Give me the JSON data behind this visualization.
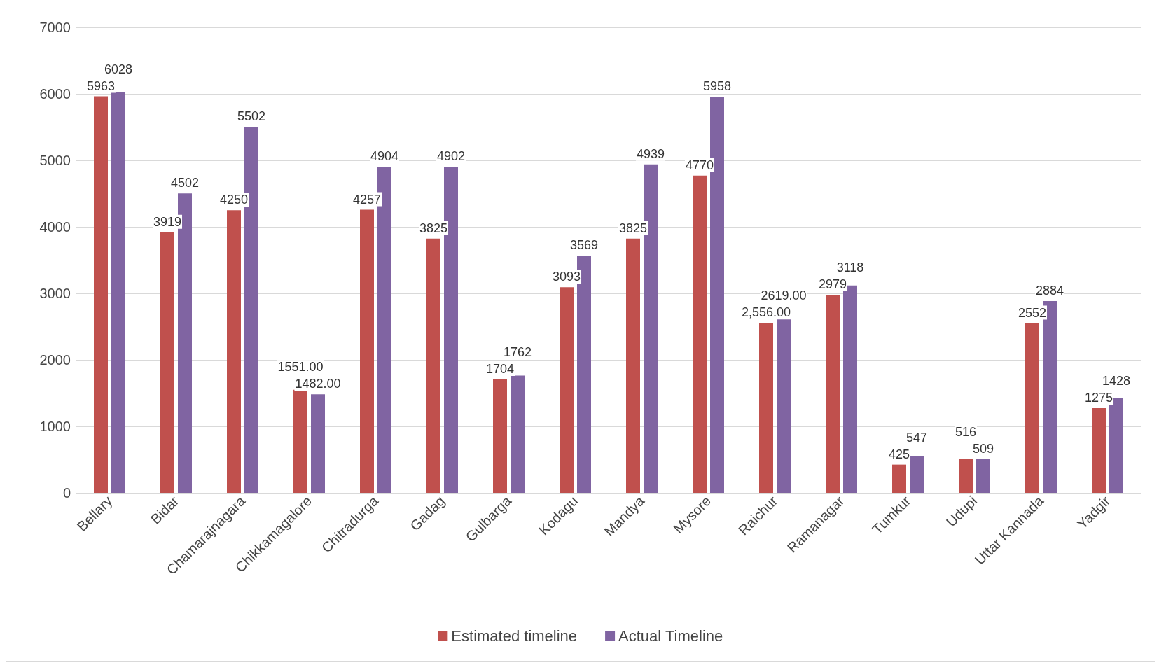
{
  "chart_data": {
    "type": "bar",
    "categories": [
      "Bellary",
      "Bidar",
      "Chamarajnagara",
      "Chikkamagalore",
      "Chitradurga",
      "Gadag",
      "Gulbarga",
      "Kodagu",
      "Mandya",
      "Mysore",
      "Raichur",
      "Ramanagar",
      "Tumkur",
      "Udupi",
      "Uttar Kannada",
      "Yadgir"
    ],
    "series": [
      {
        "name": "Estimated timeline",
        "color": "#c0504d",
        "values": [
          5963,
          3919,
          4250,
          1551,
          4257,
          3825,
          1704,
          3093,
          3825,
          4770,
          2556,
          2979,
          425,
          516,
          2552,
          1275
        ],
        "value_labels": [
          "5963",
          "3919",
          "4250",
          "1551.00",
          "4257",
          "3825",
          "1704",
          "3093",
          "3825",
          "4770",
          "2,556.00",
          "2979",
          "425",
          "516",
          "2552",
          "1275"
        ]
      },
      {
        "name": "Actual Timeline",
        "color": "#8064a2",
        "values": [
          6028,
          4502,
          5502,
          1482,
          4904,
          4902,
          1762,
          3569,
          4939,
          5958,
          2619,
          3118,
          547,
          509,
          2884,
          1428
        ],
        "value_labels": [
          "6028",
          "4502",
          "5502",
          "1482.00",
          "4904",
          "4902",
          "1762",
          "3569",
          "4939",
          "5958",
          "2619.00",
          "3118",
          "547",
          "509",
          "2884",
          "1428"
        ]
      }
    ],
    "ylim": [
      0,
      7000
    ],
    "yticks": [
      0,
      1000,
      2000,
      3000,
      4000,
      5000,
      6000,
      7000
    ],
    "grid": "y",
    "legend": "bottom"
  }
}
